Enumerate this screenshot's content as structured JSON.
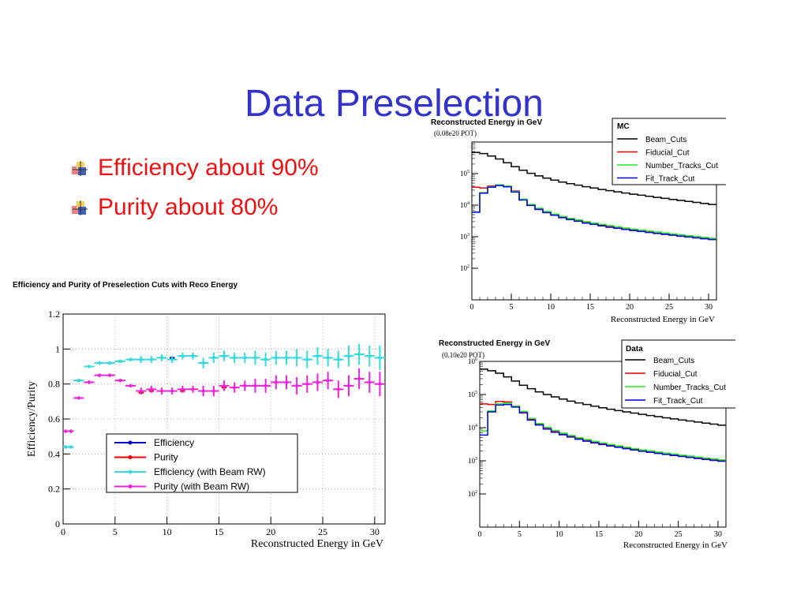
{
  "slide": {
    "title": "Data Preselection",
    "bullets": [
      "Efficiency about 90%",
      "Purity about 80%"
    ]
  },
  "colors": {
    "title": "#3333cc",
    "bullet_text": "#ee1111",
    "efficiency": "#0000cc",
    "purity": "#ee0000",
    "efficiency_rw": "#33dddd",
    "purity_rw": "#ee22dd",
    "beam_cuts": "#000000",
    "fiducial_cut": "#ee0000",
    "number_tracks_cut": "#22ee22",
    "fit_track_cut": "#0000ee"
  },
  "chart_data": [
    {
      "type": "scatter",
      "title": "Efficiency and Purity of Preselection Cuts with Reco Energy",
      "xlabel": "Reconstructed Energy in GeV",
      "ylabel": "Efficiency/Purity",
      "xlim": [
        0,
        31
      ],
      "ylim": [
        0,
        1.2
      ],
      "xticks": [
        "0",
        "5",
        "10",
        "15",
        "20",
        "25",
        "30"
      ],
      "yticks": [
        "0",
        "0.2",
        "0.4",
        "0.6",
        "0.8",
        "1",
        "1.2"
      ],
      "grid": true,
      "legend": [
        "Efficiency",
        "Purity",
        "Efficiency (with Beam RW)",
        "Purity (with Beam RW)"
      ],
      "legend_position": "lower-center",
      "x": [
        0.25,
        0.75,
        1.5,
        2.5,
        3.5,
        4.5,
        5.5,
        6.5,
        7.5,
        8.5,
        9.5,
        10.5,
        11.5,
        12.5,
        13.5,
        14.5,
        15.5,
        16.5,
        17.5,
        18.5,
        19.5,
        20.5,
        21.5,
        22.5,
        23.5,
        24.5,
        25.5,
        26.5,
        27.5,
        28.5,
        29.5,
        30.5
      ],
      "series": [
        {
          "name": "Efficiency",
          "values": [
            0.44,
            0.44,
            0.82,
            0.9,
            0.92,
            0.92,
            0.93,
            0.94,
            0.94,
            0.94,
            0.95,
            0.95,
            0.96,
            0.96,
            0.92,
            0.95,
            0.96,
            0.95,
            0.95,
            0.95,
            0.94,
            0.95,
            0.95,
            0.95,
            0.94,
            0.96,
            0.95,
            0.94,
            0.96,
            0.97,
            0.96,
            0.95
          ]
        },
        {
          "name": "Purity",
          "values": [
            0.53,
            0.53,
            0.72,
            0.81,
            0.85,
            0.85,
            0.82,
            0.79,
            0.75,
            0.76,
            0.76,
            0.76,
            0.76,
            0.77,
            0.76,
            0.76,
            0.78,
            0.78,
            0.79,
            0.79,
            0.79,
            0.81,
            0.81,
            0.79,
            0.8,
            0.81,
            0.82,
            0.77,
            0.79,
            0.83,
            0.81,
            0.8
          ]
        },
        {
          "name": "Efficiency (with Beam RW)",
          "values": [
            0.44,
            0.44,
            0.82,
            0.9,
            0.92,
            0.92,
            0.93,
            0.94,
            0.94,
            0.94,
            0.95,
            0.94,
            0.96,
            0.96,
            0.92,
            0.95,
            0.96,
            0.95,
            0.95,
            0.95,
            0.94,
            0.95,
            0.95,
            0.95,
            0.94,
            0.96,
            0.95,
            0.94,
            0.96,
            0.97,
            0.96,
            0.95
          ]
        },
        {
          "name": "Purity (with Beam RW)",
          "values": [
            0.53,
            0.53,
            0.72,
            0.81,
            0.85,
            0.85,
            0.82,
            0.79,
            0.76,
            0.77,
            0.76,
            0.76,
            0.77,
            0.77,
            0.76,
            0.76,
            0.79,
            0.78,
            0.79,
            0.79,
            0.79,
            0.81,
            0.81,
            0.79,
            0.8,
            0.81,
            0.82,
            0.77,
            0.79,
            0.83,
            0.81,
            0.8
          ]
        }
      ],
      "error_bars_rw": [
        0.01,
        0.01,
        0.01,
        0.01,
        0.01,
        0.01,
        0.01,
        0.01,
        0.02,
        0.02,
        0.02,
        0.02,
        0.02,
        0.02,
        0.03,
        0.03,
        0.03,
        0.03,
        0.03,
        0.04,
        0.04,
        0.04,
        0.04,
        0.05,
        0.05,
        0.05,
        0.05,
        0.05,
        0.06,
        0.06,
        0.06,
        0.07
      ]
    },
    {
      "type": "line",
      "title": "Reconstructed Energy in GeV",
      "subtitle": "(0.08e20 POT)",
      "legend_title": "MC",
      "xlabel": "Reconstructed Energy in GeV",
      "ylabel": "",
      "xlim": [
        0,
        31
      ],
      "ylim": [
        10,
        1000000
      ],
      "yscale": "log",
      "xticks": [
        "0",
        "5",
        "10",
        "15",
        "20",
        "25",
        "30"
      ],
      "yticks": [
        "10^2",
        "10^3",
        "10^4",
        "10^5"
      ],
      "legend_position": "top-right",
      "bin_width": 1,
      "bin_start": 0,
      "series": [
        {
          "name": "Beam_Cuts",
          "values": [
            470000,
            430000,
            360000,
            290000,
            220000,
            165000,
            128000,
            102000,
            85000,
            72000,
            62000,
            54000,
            48000,
            43000,
            38500,
            35000,
            31500,
            28800,
            26500,
            24300,
            22300,
            20700,
            19100,
            17700,
            16400,
            15200,
            14100,
            13100,
            12200,
            11300,
            10500
          ]
        },
        {
          "name": "Fiducial_Cut",
          "values": [
            37000,
            35000,
            40000,
            43000,
            40000,
            28000,
            15000,
            10000,
            7500,
            6000,
            5000,
            4200,
            3600,
            3200,
            2800,
            2500,
            2300,
            2100,
            1900,
            1750,
            1620,
            1500,
            1400,
            1300,
            1210,
            1130,
            1060,
            1000,
            940,
            880,
            830
          ]
        },
        {
          "name": "Number_Tracks_Cut",
          "values": [
            6000,
            25000,
            38000,
            44000,
            40000,
            27000,
            15500,
            10500,
            8000,
            6300,
            5200,
            4400,
            3800,
            3400,
            3000,
            2700,
            2450,
            2250,
            2050,
            1880,
            1740,
            1620,
            1510,
            1410,
            1320,
            1230,
            1150,
            1080,
            1010,
            950,
            890
          ]
        },
        {
          "name": "Fit_Track_Cut",
          "values": [
            6000,
            24000,
            37000,
            42000,
            38000,
            26000,
            14500,
            9800,
            7300,
            5800,
            4800,
            4000,
            3500,
            3100,
            2700,
            2450,
            2200,
            2000,
            1850,
            1700,
            1570,
            1460,
            1360,
            1270,
            1190,
            1110,
            1040,
            980,
            920,
            860,
            810
          ]
        }
      ]
    },
    {
      "type": "line",
      "title": "Reconstructed Energy in GeV",
      "subtitle": "(0.10e20 POT)",
      "legend_title": "Data",
      "xlabel": "Reconstructed Energy in GeV",
      "ylabel": "",
      "xlim": [
        0,
        31
      ],
      "ylim": [
        10,
        1000000
      ],
      "yscale": "log",
      "xticks": [
        "0",
        "5",
        "10",
        "15",
        "20",
        "25",
        "30"
      ],
      "yticks": [
        "10^2",
        "10^3",
        "10^4",
        "10^5",
        "10^6"
      ],
      "legend_position": "top-right",
      "bin_width": 1,
      "bin_start": 0,
      "series": [
        {
          "name": "Beam_Cuts",
          "values": [
            580000,
            520000,
            440000,
            340000,
            255000,
            190000,
            150000,
            120000,
            100000,
            85000,
            73000,
            63000,
            56000,
            50000,
            44500,
            40000,
            36000,
            32800,
            30000,
            27500,
            25300,
            23300,
            21500,
            19900,
            18400,
            17100,
            15900,
            14800,
            13700,
            12800,
            11900
          ]
        },
        {
          "name": "Fiducial_Cut",
          "values": [
            52000,
            50000,
            62000,
            60000,
            45000,
            30000,
            18000,
            12500,
            9500,
            7700,
            6400,
            5400,
            4700,
            4100,
            3600,
            3200,
            2900,
            2650,
            2400,
            2200,
            2000,
            1850,
            1720,
            1600,
            1490,
            1390,
            1300,
            1220,
            1140,
            1070,
            1000
          ]
        },
        {
          "name": "Number_Tracks_Cut",
          "values": [
            8000,
            32000,
            52000,
            55000,
            45000,
            31000,
            19000,
            13300,
            10200,
            8200,
            6800,
            5800,
            5000,
            4400,
            3850,
            3450,
            3100,
            2820,
            2560,
            2340,
            2140,
            1980,
            1840,
            1710,
            1590,
            1480,
            1390,
            1300,
            1210,
            1140,
            1070
          ]
        },
        {
          "name": "Fit_Track_Cut",
          "values": [
            6000,
            30000,
            48000,
            50000,
            42000,
            28000,
            17000,
            12000,
            9100,
            7300,
            6100,
            5200,
            4500,
            3900,
            3450,
            3100,
            2800,
            2550,
            2320,
            2120,
            1940,
            1800,
            1670,
            1560,
            1450,
            1350,
            1260,
            1180,
            1100,
            1030,
            970
          ]
        }
      ]
    }
  ]
}
